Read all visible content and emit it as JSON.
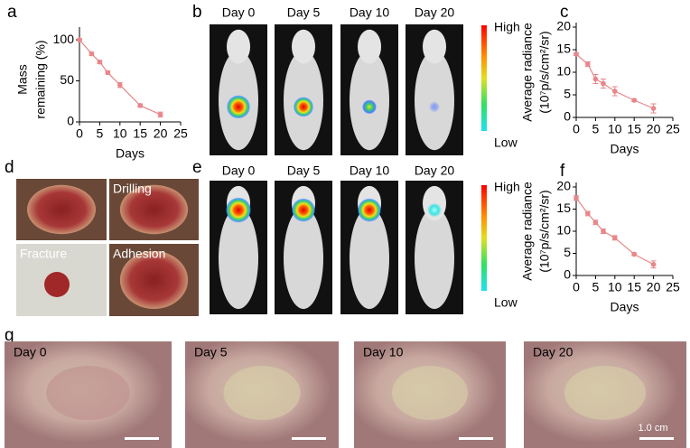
{
  "chart_data": [
    {
      "type": "line",
      "panel_label": "a",
      "xlabel": "Days",
      "ylabel": [
        "Mass",
        "remaining (%)"
      ],
      "x": [
        0,
        3,
        5,
        7,
        10,
        15,
        20
      ],
      "values": [
        100,
        83,
        73,
        60,
        45,
        20,
        9
      ],
      "errors": [
        1,
        2,
        2,
        2,
        3,
        2,
        3
      ],
      "color": "#e8878a",
      "xlim": [
        0,
        25
      ],
      "xticks": [
        0,
        5,
        10,
        15,
        20,
        25
      ],
      "ylim": [
        0,
        110
      ],
      "yticks": [
        0,
        50,
        100
      ]
    },
    {
      "type": "line",
      "panel_label": "c",
      "xlabel": "Days",
      "ylabel": [
        "Average radiance",
        "(10⁷p/s/cm²/sr)"
      ],
      "x": [
        0,
        3,
        5,
        7,
        10,
        15,
        20
      ],
      "values": [
        14,
        11.8,
        8.5,
        7.5,
        5.8,
        3.8,
        2
      ],
      "errors": [
        0.3,
        0.5,
        1,
        1,
        1,
        0.3,
        1
      ],
      "color": "#e8878a",
      "xlim": [
        0,
        25
      ],
      "xticks": [
        0,
        5,
        10,
        15,
        20,
        25
      ],
      "ylim": [
        0,
        20
      ],
      "yticks": [
        0,
        5,
        10,
        15,
        20
      ]
    },
    {
      "type": "line",
      "panel_label": "f",
      "xlabel": "Days",
      "ylabel": [
        "Average radiance",
        "(10⁷p/s/cm²/sr)"
      ],
      "x": [
        0,
        3,
        5,
        7,
        10,
        15,
        20
      ],
      "values": [
        17.5,
        14,
        12,
        10,
        8.5,
        4.8,
        2.5
      ],
      "errors": [
        0.5,
        0.5,
        0.5,
        0.5,
        0.5,
        0.3,
        0.8
      ],
      "color": "#e8878a",
      "xlim": [
        0,
        25
      ],
      "xticks": [
        0,
        5,
        10,
        15,
        20,
        25
      ],
      "ylim": [
        0,
        20
      ],
      "yticks": [
        0,
        5,
        10,
        15,
        20
      ]
    }
  ],
  "image_panels": [
    {
      "label": "b",
      "captions": [
        "Day 0",
        "Day 5",
        "Day 10",
        "Day 20"
      ],
      "colorbar": [
        "High",
        "Low"
      ]
    },
    {
      "label": "d",
      "captions": [
        "Drilling",
        "Fracture",
        "Adhesion"
      ]
    },
    {
      "label": "e",
      "captions": [
        "Day 0",
        "Day 5",
        "Day 10",
        "Day 20"
      ],
      "colorbar": [
        "High",
        "Low"
      ]
    },
    {
      "label": "g",
      "captions": [
        "Day 0",
        "Day 5",
        "Day 10",
        "Day 20"
      ],
      "scale_bar": "1.0 cm"
    }
  ]
}
